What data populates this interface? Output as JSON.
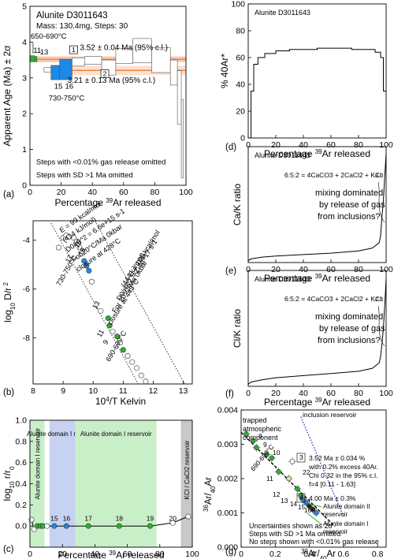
{
  "chart_data": [
    {
      "panel": "(a)",
      "type": "bar",
      "title": "Alunite D3011643",
      "subtitle": "Mass: 130.4mg, Steps: 30",
      "xlabel": "Percentage 39Ar released",
      "ylabel": "Apparent Age (Ma) ± 2σ",
      "xlim": [
        0,
        100
      ],
      "ylim": [
        0,
        5
      ],
      "xticks": [
        0,
        20,
        40,
        60,
        80,
        100
      ],
      "yticks": [
        0,
        1,
        2,
        3,
        4,
        5
      ],
      "plateaus": [
        {
          "label": "1",
          "value": 3.52,
          "text": "3.52 ± 0.04 Ma (95% c.l.)",
          "range": [
            4,
            100
          ]
        },
        {
          "label": "2",
          "value": 3.21,
          "text": "3.21 ± 0.13 Ma (95% c.l.)",
          "range": [
            22,
            100
          ]
        }
      ],
      "steps": [
        {
          "x0": 0.0,
          "x1": 3.0,
          "lo": 3.45,
          "hi": 3.62,
          "color": "#2db12d"
        },
        {
          "x0": 3.0,
          "x1": 4.5,
          "lo": 3.45,
          "hi": 3.6,
          "color": "#2db12d"
        },
        {
          "x0": 9.0,
          "x1": 13.5,
          "lo": 3.16,
          "hi": 3.29,
          "color": "#ffffff"
        },
        {
          "x0": 13.5,
          "x1": 19.0,
          "lo": 2.95,
          "hi": 3.35,
          "color": "#1e88e5"
        },
        {
          "x0": 19.0,
          "x1": 27.0,
          "lo": 2.95,
          "hi": 3.52,
          "color": "#1e88e5"
        },
        {
          "x0": 27.0,
          "x1": 35.0,
          "lo": 3.33,
          "hi": 3.56,
          "color": "#ffffff"
        },
        {
          "x0": 35.0,
          "x1": 46.0,
          "lo": 3.38,
          "hi": 3.6,
          "color": "#ffffff"
        },
        {
          "x0": 46.0,
          "x1": 55.0,
          "lo": 3.08,
          "hi": 3.5,
          "color": "#ffffff"
        },
        {
          "x0": 55.0,
          "x1": 66.0,
          "lo": 3.4,
          "hi": 3.82,
          "color": "#ffffff"
        },
        {
          "x0": 66.0,
          "x1": 78.0,
          "lo": 3.42,
          "hi": 4.1,
          "color": "#ffffff"
        },
        {
          "x0": 78.0,
          "x1": 90.0,
          "lo": 3.15,
          "hi": 3.85,
          "color": "#ffffff"
        },
        {
          "x0": 90.0,
          "x1": 94.5,
          "lo": 2.8,
          "hi": 3.5,
          "color": "#ffffff"
        },
        {
          "x0": 94.5,
          "x1": 97.0,
          "lo": 1.7,
          "hi": 3.2,
          "color": "#ffffff"
        },
        {
          "x0": 97.0,
          "x1": 98.2,
          "lo": 0.2,
          "hi": 2.4,
          "color": "#ffffff"
        }
      ],
      "annotations": [
        {
          "text": "650-690°C",
          "x": 0.5,
          "y": 4.1
        },
        {
          "text": "11",
          "x": 2.2,
          "y": 3.7
        },
        {
          "text": "13",
          "x": 6.4,
          "y": 3.66
        },
        {
          "text": "15",
          "x": 15.5,
          "y": 2.7
        },
        {
          "text": "16",
          "x": 22.5,
          "y": 2.7
        },
        {
          "text": "730-750°C",
          "x": 12.0,
          "y": 2.37
        },
        {
          "text": "Steps with <0.01% gas release omitted",
          "x": 4.0,
          "y": 0.58
        },
        {
          "text": "Steps with SD >1 Ma omitted",
          "x": 4.0,
          "y": 0.22
        }
      ]
    },
    {
      "panel": "(b)",
      "type": "scatter",
      "xlabel": "10⁴/T Kelvin",
      "ylabel": "log10 D/r 2",
      "xlim": [
        8,
        13.3
      ],
      "ylim": [
        -9.9,
        -3.2
      ],
      "xticks": [
        8,
        9,
        10,
        11,
        12,
        13
      ],
      "yticks": [
        -4,
        -6,
        -8
      ],
      "x": [
        8.85,
        9.0,
        9.1,
        9.2,
        9.35,
        9.45,
        9.55,
        9.62,
        9.7,
        9.78,
        9.86,
        9.95,
        10.25,
        10.5,
        10.55,
        10.65,
        10.8,
        10.9,
        11.0,
        11.15,
        11.3,
        11.45,
        11.6,
        11.75
      ],
      "y": [
        -4.3,
        -3.9,
        -3.8,
        -3.85,
        -3.9,
        -4.05,
        -4.3,
        -4.55,
        -4.85,
        -5.05,
        -5.25,
        -5.7,
        -6.9,
        -7.2,
        -7.5,
        -7.75,
        -7.95,
        -8.2,
        -8.5,
        -8.75,
        -9.0,
        -9.25,
        -9.55,
        -9.8
      ],
      "point_colors": [
        "#ffffff",
        "#ffffff",
        "#ffffff",
        "#ffffff",
        "#ffffff",
        "#ffffff",
        "#ffffff",
        "#ffffff",
        "#1e88e5",
        "#1e88e5",
        "#1e88e5",
        "#ffffff",
        "#ffffff",
        "#2db12d",
        "#2db12d",
        "#ffffff",
        "#2db12d",
        "#ffffff",
        "#2db12d",
        "#ffffff",
        "#ffffff",
        "#ffffff",
        "#ffffff",
        "#ffffff"
      ],
      "lines": [
        {
          "x": [
            8.6,
            11.5
          ],
          "y": [
            -3.3,
            -9.9
          ],
          "style": "dotted"
        },
        {
          "x": [
            10.1,
            13.05
          ],
          "y": [
            -3.3,
            -9.9
          ],
          "style": "dotted"
        }
      ],
      "annotations": [
        {
          "text": "E = 99 kcal/mol",
          "x": 8.95,
          "y": -3.7
        },
        {
          "text": "(414 kJ/mol)",
          "x": 9.05,
          "y": -4.1
        },
        {
          "text": "D0/r0^2 = 6.6e+15 s-1",
          "x": 9.15,
          "y": -4.5
        },
        {
          "text": "For 20°C/Ma 0kbar",
          "x": 9.35,
          "y": -4.9
        },
        {
          "text": "closure at 428°C",
          "x": 9.5,
          "y": -5.3
        },
        {
          "text": "17",
          "x": 9.2,
          "y": -4.95
        },
        {
          "text": "16",
          "x": 9.62,
          "y": -4.65
        },
        {
          "text": "15",
          "x": 9.5,
          "y": -4.35
        },
        {
          "text": "730-750°C",
          "x": 8.9,
          "y": -5.9
        },
        {
          "text": "E = 106 kcal/mol",
          "x": 11.3,
          "y": -5.5
        },
        {
          "text": "(444 kJ/mol)",
          "x": 11.05,
          "y": -5.95
        },
        {
          "text": "D0/r0^2 = 2.4e+17 s-1",
          "x": 10.9,
          "y": -6.5
        },
        {
          "text": "For 20°C/Ma 0kbar",
          "x": 10.75,
          "y": -7.0
        },
        {
          "text": "closure at 443°C",
          "x": 10.6,
          "y": -7.5
        },
        {
          "text": "13",
          "x": 10.1,
          "y": -6.85
        },
        {
          "text": "11",
          "x": 10.25,
          "y": -8.0
        },
        {
          "text": "9",
          "x": 10.45,
          "y": -8.3
        },
        {
          "text": "690-690°C",
          "x": 10.55,
          "y": -9.0
        }
      ]
    },
    {
      "panel": "(c)",
      "type": "line",
      "xlabel": "Percentage 39Ar released",
      "ylabel": "log10 r/r0",
      "xlim": [
        0,
        100
      ],
      "ylim": [
        -0.2,
        1.0
      ],
      "xticks": [
        0,
        20,
        40,
        60,
        80,
        100
      ],
      "yticks": [
        0.0,
        0.2,
        0.4,
        0.6,
        0.8,
        1.0
      ],
      "regions": [
        {
          "x0": 0,
          "x1": 9,
          "color": "#c9efc9",
          "text": "Alunite domain I reservoir"
        },
        {
          "x0": 12,
          "x1": 28,
          "color": "#c7d1f1",
          "text": "Alunite domain I reservoir"
        },
        {
          "x0": 28,
          "x1": 78,
          "color": "#c9efc9",
          "text": "Alunite domain I reservoir"
        },
        {
          "x0": 93,
          "x1": 100,
          "color": "#c8c8c8",
          "text": "KCl / CaCl2 reservoir"
        }
      ],
      "x": [
        1.0,
        2.5,
        4.5,
        6.5,
        8.0,
        10.5,
        15.0,
        22.5,
        36.0,
        55.0,
        74.0,
        88.0,
        97.5
      ],
      "y": [
        0.06,
        -0.03,
        0.0,
        0.0,
        0.0,
        0.0,
        0.0,
        0.0,
        0.0,
        0.0,
        0.0,
        0.03,
        0.09
      ],
      "point_colors": [
        "#ffffff",
        "#ffffff",
        "#2db12d",
        "#2db12d",
        "#2db12d",
        "#ffffff",
        "#1e88e5",
        "#1e88e5",
        "#2db12d",
        "#2db12d",
        "#2db12d",
        "#ffffff",
        "#ffffff"
      ],
      "annotations": [
        {
          "text": "15",
          "x": 15.0
        },
        {
          "text": "16",
          "x": 22.5
        },
        {
          "text": "17",
          "x": 36.0
        },
        {
          "text": "18",
          "x": 55.0
        },
        {
          "text": "19",
          "x": 74.0
        },
        {
          "text": "20",
          "x": 88.0
        }
      ]
    },
    {
      "panel": "(d)",
      "type": "line",
      "title": "Alunite D3011643",
      "xlabel": "Percentage 39Ar released",
      "ylabel": "% 40Ar*",
      "xlim": [
        0,
        100
      ],
      "ylim": [
        0,
        100
      ],
      "xticks": [
        0,
        20,
        40,
        60,
        80,
        100
      ],
      "yticks": [
        0,
        20,
        40,
        60,
        80,
        100
      ],
      "x": [
        0,
        2,
        2,
        4,
        4,
        7,
        7,
        12,
        12,
        20,
        20,
        30,
        30,
        50,
        50,
        75,
        75,
        92,
        92,
        96,
        96,
        98,
        98,
        100
      ],
      "y": [
        0,
        0,
        35,
        35,
        55,
        55,
        60,
        60,
        63,
        63,
        65,
        65,
        66,
        66,
        67,
        67,
        66,
        66,
        64,
        64,
        60,
        60,
        35,
        35
      ]
    },
    {
      "panel": "(e)",
      "type": "line",
      "title": "Alunite D3011643",
      "xlabel": "Percentage 39Ar released",
      "ylabel": "Ca/K ratio",
      "xlim": [
        0,
        100
      ],
      "ylim": [
        0,
        3.2
      ],
      "xticks": [
        0,
        20,
        40,
        60,
        80,
        100
      ],
      "x": [
        0,
        2,
        5,
        10,
        20,
        40,
        60,
        80,
        90,
        95,
        96,
        97,
        98,
        99,
        100
      ],
      "y": [
        0.05,
        0.1,
        0.12,
        0.15,
        0.18,
        0.22,
        0.26,
        0.32,
        0.4,
        0.55,
        0.75,
        1.3,
        1.7,
        2.4,
        3.0
      ],
      "annotations": [
        {
          "text": "6:5:2 = 4CaCO3 + 2CaCl2 + KCl"
        },
        {
          "text": "3.0"
        },
        {
          "text": "mixing dominated"
        },
        {
          "text": "by release of gas"
        },
        {
          "text": "from inclusions?"
        }
      ]
    },
    {
      "panel": "(f)",
      "type": "line",
      "title": "Alunite D3011643",
      "xlabel": "Percentage 39Ar released",
      "ylabel": "Cl/K ratio",
      "xlim": [
        0,
        100
      ],
      "ylim": [
        0,
        2.7
      ],
      "xticks": [
        0,
        20,
        40,
        60,
        80,
        100
      ],
      "x": [
        0,
        2,
        5,
        10,
        20,
        40,
        60,
        80,
        90,
        95,
        96,
        97,
        98,
        99,
        100
      ],
      "y": [
        0.05,
        0.1,
        0.12,
        0.15,
        0.2,
        0.25,
        0.3,
        0.35,
        0.42,
        0.55,
        0.7,
        1.0,
        1.35,
        1.9,
        2.5
      ],
      "annotations": [
        {
          "text": "6:5:2 = 4CaCO3 + 2CaCl2 + KCl"
        },
        {
          "text": "2.5"
        },
        {
          "text": "mixing dominated"
        },
        {
          "text": "by release of gas"
        },
        {
          "text": "from inclusions?"
        }
      ]
    },
    {
      "panel": "(g)",
      "type": "scatter",
      "xlabel": "39Ar/40Ar",
      "ylabel": "36Ar/40Ar",
      "xlim": [
        0,
        0.85
      ],
      "ylim": [
        0,
        0.004
      ],
      "xticks": [
        0.0,
        0.2,
        0.4,
        0.6,
        0.8
      ],
      "yticks": [
        0.0,
        0.001,
        0.002,
        0.003,
        0.004
      ],
      "x": [
        0.03,
        0.07,
        0.09,
        0.15,
        0.18,
        0.22,
        0.3,
        0.28,
        0.33,
        0.35,
        0.36,
        0.38,
        0.4,
        0.42,
        0.44
      ],
      "y": [
        0.0033,
        0.0031,
        0.0029,
        0.0027,
        0.0026,
        0.0022,
        0.0025,
        0.002,
        0.0017,
        0.0015,
        0.0014,
        0.0013,
        0.0012,
        0.0011,
        0.001
      ],
      "point_colors": [
        "#2db12d",
        "#2db12d",
        "#2db12d",
        "#2db12d",
        "#2db12d",
        "#2db12d",
        "#ffffff",
        "#e8d9a8",
        "#2db12d",
        "#2db12d",
        "#1e88e5",
        "#1e88e5",
        "#222222",
        "#222222",
        "#1e88e5"
      ],
      "lines": [
        {
          "x": [
            0.0,
            0.55
          ],
          "y": [
            0.00335,
            0.0006
          ],
          "style": "dashed",
          "color": "#000000"
        },
        {
          "x": [
            0.35,
            0.6
          ],
          "y": [
            0.0038,
            0.0009
          ],
          "style": "dotted",
          "color": "#1e3fd0"
        }
      ],
      "annotations": [
        {
          "text": "trapped"
        },
        {
          "text": "atmospheric"
        },
        {
          "text": "component"
        },
        {
          "text": "inclusion reservoir"
        },
        {
          "text": "3"
        },
        {
          "text": "3.52 Ma ± 0.034 %"
        },
        {
          "text": "with 0.2% excess 40Ar."
        },
        {
          "text": "Chi 0.32 in the 95% c.l."
        },
        {
          "text": "f=4 [0.11 - 1.63]"
        },
        {
          "text": "4"
        },
        {
          "text": "4.00 Ma ± 0.3%"
        },
        {
          "text": "8"
        },
        {
          "text": "9"
        },
        {
          "text": "10"
        },
        {
          "text": "690-690°C"
        },
        {
          "text": "22"
        },
        {
          "text": "11"
        },
        {
          "text": "12"
        },
        {
          "text": "13"
        },
        {
          "text": "14"
        },
        {
          "text": "15"
        },
        {
          "text": "16"
        },
        {
          "text": "Alunite domain II"
        },
        {
          "text": "reservoir"
        },
        {
          "text": "Alunite domain I"
        },
        {
          "text": "reservoir"
        },
        {
          "text": "Uncertainties shown as 2σ"
        },
        {
          "text": "Steps with SD >1 Ma omitted"
        },
        {
          "text": "No steps shown with <0.01% gas release"
        }
      ]
    }
  ]
}
